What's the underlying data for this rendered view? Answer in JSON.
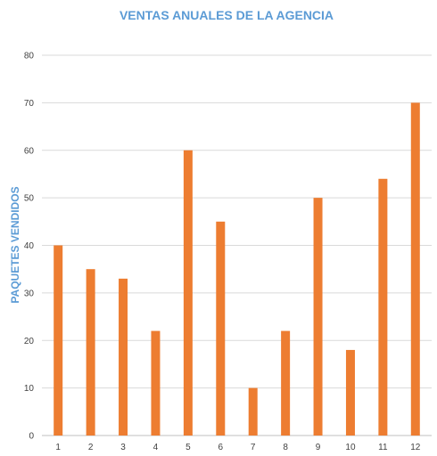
{
  "chart_data": {
    "type": "bar",
    "title": "VENTAS ANUALES DE LA AGENCIA",
    "xlabel": "",
    "ylabel": "PAQUETES VENDIDOS",
    "categories": [
      "1",
      "2",
      "3",
      "4",
      "5",
      "6",
      "7",
      "8",
      "9",
      "10",
      "11",
      "12"
    ],
    "values": [
      40,
      35,
      33,
      22,
      60,
      45,
      10,
      22,
      50,
      18,
      54,
      70
    ],
    "ylim": [
      0,
      80
    ],
    "yticks": [
      "0",
      "10",
      "20",
      "30",
      "40",
      "50",
      "60",
      "70",
      "80"
    ],
    "grid": true,
    "legend": "none"
  },
  "colors": {
    "bar": "#ED7D31",
    "title": "#5B9BD5",
    "axis_label": "#5B9BD5",
    "grid": "#D9D9D9",
    "axis": "#BFBFBF"
  }
}
